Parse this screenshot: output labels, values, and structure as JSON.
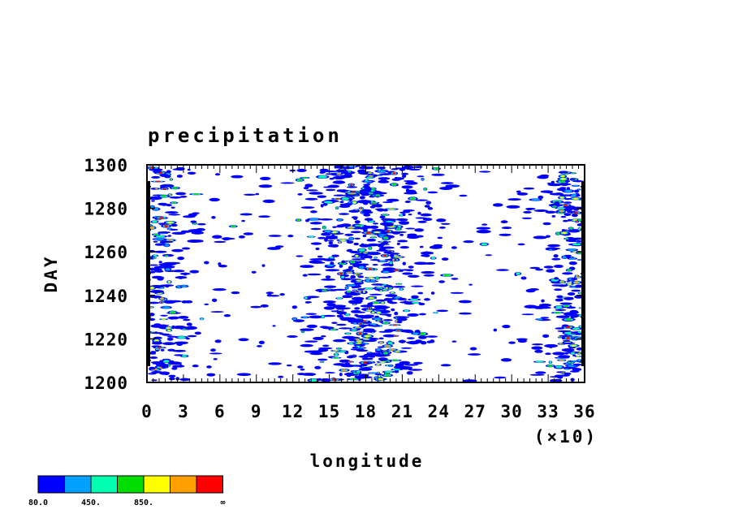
{
  "chart_data": {
    "type": "heatmap",
    "title": "precipitation",
    "xlabel": "longitude",
    "ylabel": "DAY",
    "x_multiplier_label": "(×10)",
    "xlim": [
      0,
      36
    ],
    "ylim": [
      1200,
      1300
    ],
    "x_ticks": [
      "0",
      "3",
      "6",
      "9",
      "12",
      "15",
      "18",
      "21",
      "24",
      "27",
      "30",
      "33",
      "36"
    ],
    "y_ticks": [
      "1200",
      "1220",
      "1240",
      "1260",
      "1280",
      "1300"
    ],
    "colorbar": {
      "colors": [
        "#0000ff",
        "#00a0ff",
        "#00ffb0",
        "#00dd00",
        "#ffff00",
        "#ffa000",
        "#ff0000"
      ],
      "labels": [
        "80.0",
        "450.",
        "850.",
        "∞"
      ]
    }
  }
}
